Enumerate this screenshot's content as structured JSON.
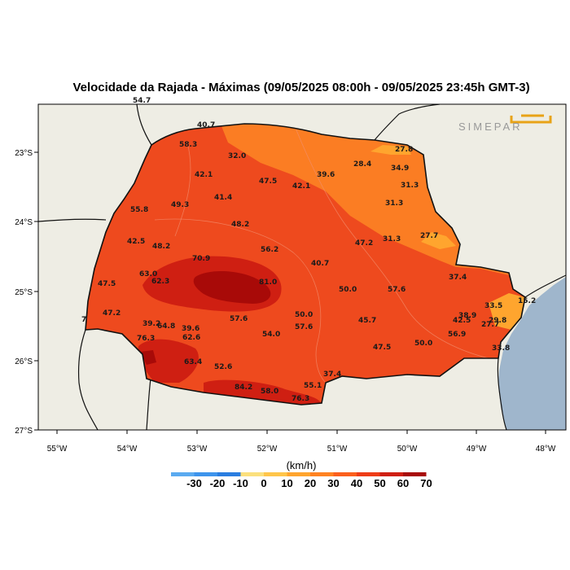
{
  "title": "Velocidade da Rajada - Máximas (09/05/2025 08:00h - 09/05/2025 23:45h GMT-3)",
  "logo_text": "SIMEPAR",
  "lat_ticks": [
    "23°S",
    "24°S",
    "25°S",
    "26°S",
    "27°S"
  ],
  "lon_ticks": [
    "55°W",
    "54°W",
    "53°W",
    "52°W",
    "51°W",
    "50°W",
    "49°W",
    "48°W"
  ],
  "legend": {
    "unit": "(km/h)",
    "ticks": [
      "-30",
      "-20",
      "-10",
      "0",
      "10",
      "20",
      "30",
      "40",
      "50",
      "60",
      "70"
    ],
    "colors": [
      "#5aaaf0",
      "#3d94ec",
      "#2a7de0",
      "#fbe07d",
      "#ffc64a",
      "#ffa52e",
      "#ff8221",
      "#fb5f1c",
      "#ee3c17",
      "#cf1f12",
      "#a80a08"
    ]
  },
  "colors": {
    "ocean": "#9fb6cc",
    "land": "#eeede4",
    "state_base": "#ee4a1e",
    "zone_low": "#fb7d23",
    "zone_lowest": "#ffa52e",
    "zone_high": "#cf1f12",
    "zone_peak": "#a80a08"
  },
  "station_values": [
    "54.7",
    "40.7",
    "58.3",
    "32.0",
    "27.8",
    "28.4",
    "34.9",
    "42.1",
    "47.5",
    "39.6",
    "42.1",
    "31.3",
    "41.4",
    "55.8",
    "49.3",
    "31.3",
    "48.2",
    "42.5",
    "48.2",
    "56.2",
    "47.2",
    "31.3",
    "27.7",
    "70.9",
    "63.0",
    "62.3",
    "81.0",
    "40.7",
    "37.4",
    "47.5",
    "50.0",
    "57.6",
    "47.2",
    "33.5",
    "15.2",
    "50.0",
    "57.6",
    "39.2",
    "64.8",
    "39.6",
    "45.7",
    "38.9",
    "42.5",
    "27.7",
    "29.8",
    "76.3",
    "62.6",
    "54.0",
    "57.6",
    "56.9",
    "47.5",
    "50.0",
    "33.8",
    "63.4",
    "52.6",
    "37.4",
    "55.1",
    "84.2",
    "58.0",
    "76.3",
    "7"
  ]
}
